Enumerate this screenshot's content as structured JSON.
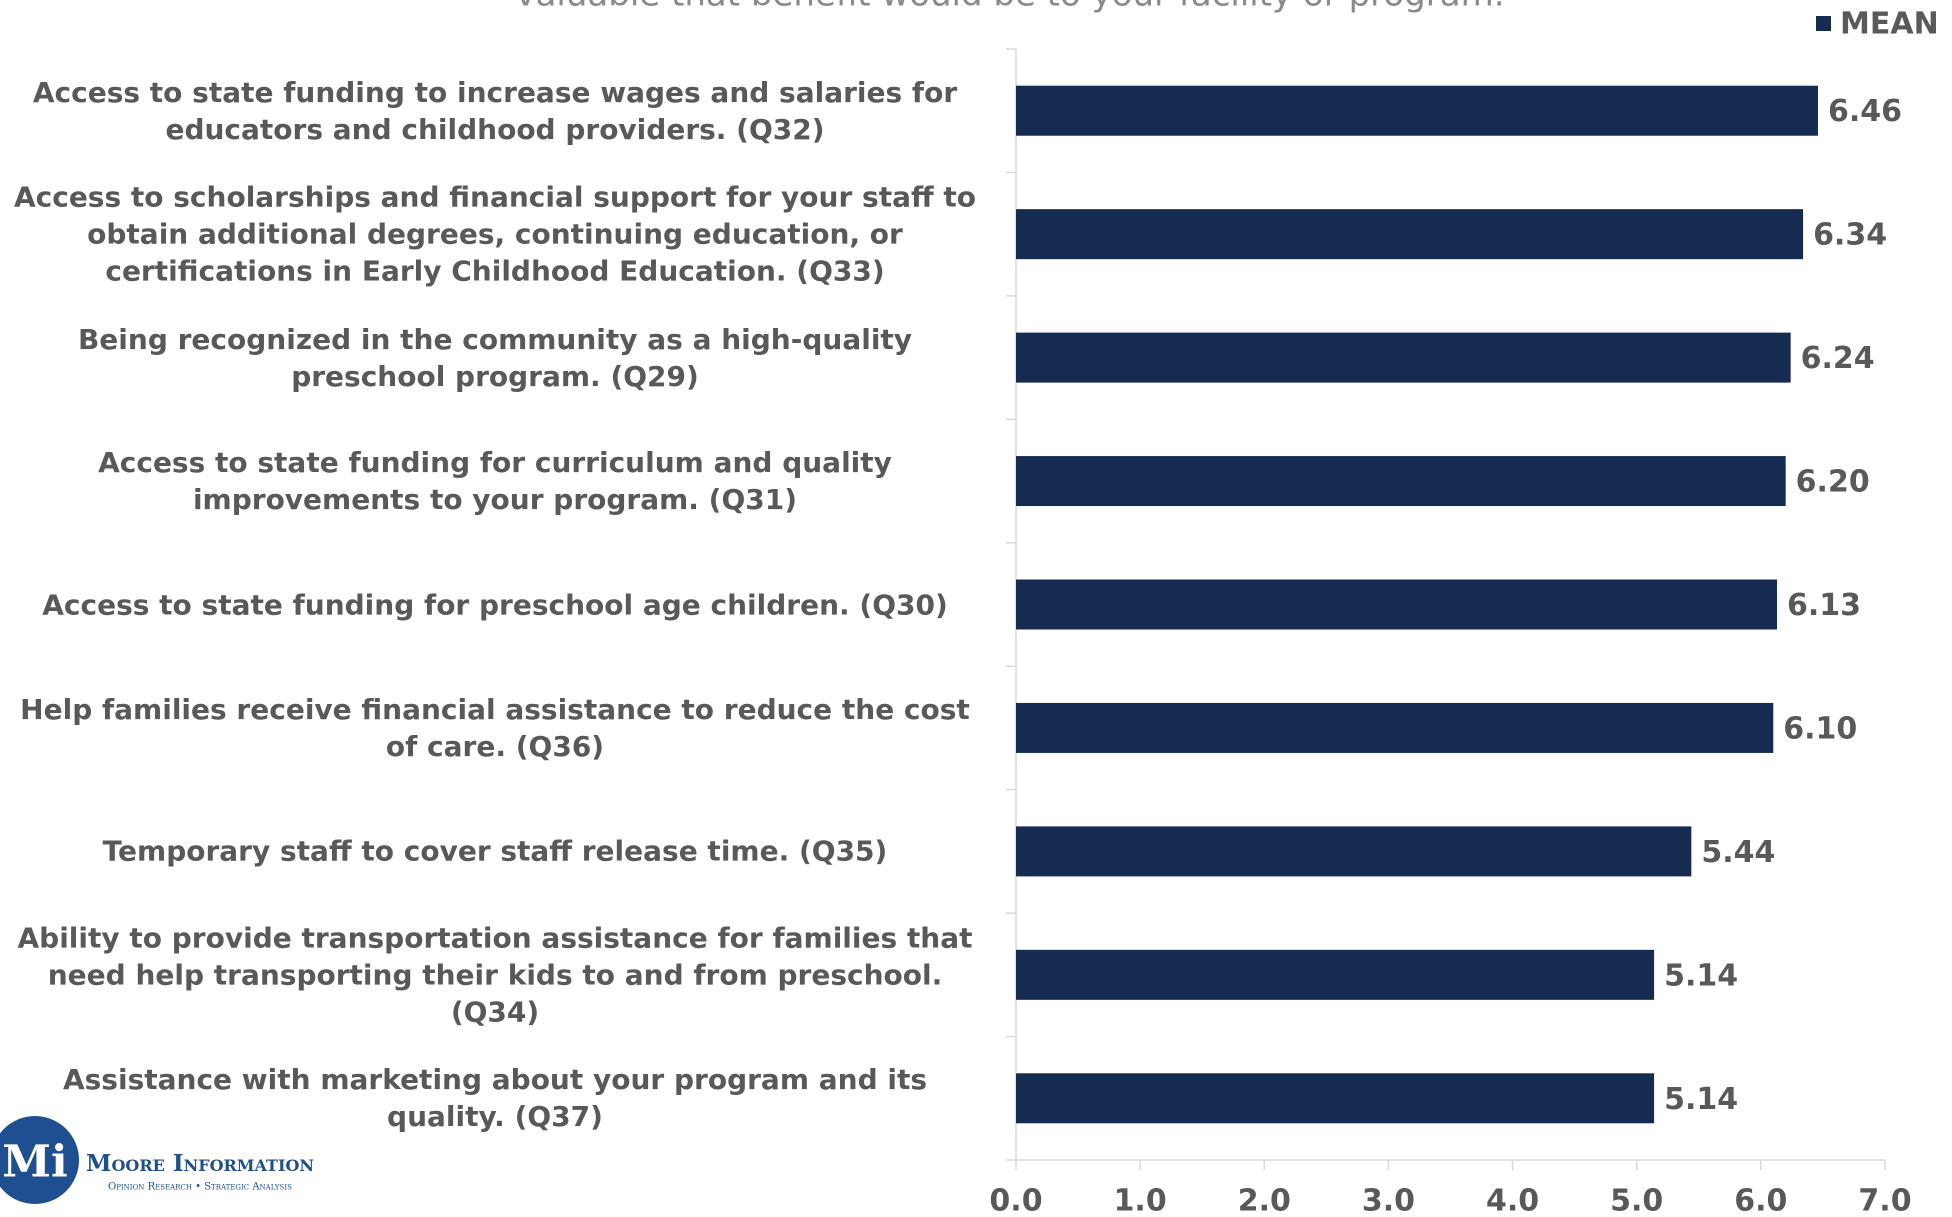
{
  "chart_data": {
    "type": "bar",
    "orientation": "horizontal",
    "title": "valuable that benefit would be to your facility or program.",
    "categories": [
      "Access to state funding to increase wages and salaries for educators and childhood providers. (Q32)",
      "Access to scholarships and financial support for your staff to obtain additional degrees, continuing education, or certifications in Early Childhood Education. (Q33)",
      "Being recognized in the community as a high-quality preschool program. (Q29)",
      "Access to state funding for curriculum and quality improvements to your program. (Q31)",
      "Access to state funding for preschool age children. (Q30)",
      "Help families receive financial assistance to reduce the cost of care. (Q36)",
      "Temporary staff to cover staff release time. (Q35)",
      "Ability to provide transportation assistance for families that need help transporting their kids to and from preschool. (Q34)",
      "Assistance with marketing about your program and its quality. (Q37)"
    ],
    "series": [
      {
        "name": "MEAN",
        "color": "#152b52",
        "values": [
          6.46,
          6.34,
          6.24,
          6.2,
          6.13,
          6.1,
          5.44,
          5.14,
          5.14
        ],
        "value_labels": [
          "6.46",
          "6.34",
          "6.24",
          "6.20",
          "6.13",
          "6.10",
          "5.44",
          "5.14",
          "5.14"
        ]
      }
    ],
    "xlim": [
      0,
      7
    ],
    "xticks": [
      {
        "value": 0,
        "label": "0.0"
      },
      {
        "value": 1,
        "label": "1.0"
      },
      {
        "value": 2,
        "label": "2.0"
      },
      {
        "value": 3,
        "label": "3.0"
      },
      {
        "value": 4,
        "label": "4.0"
      },
      {
        "value": 5,
        "label": "5.0"
      },
      {
        "value": 6,
        "label": "6.0"
      },
      {
        "value": 7,
        "label": "7.0"
      }
    ],
    "legend": "top-right",
    "grid": false
  },
  "logo": {
    "mark": "Mi",
    "name": "Moore Information",
    "tagline": "Opinion Research • Strategic Analysis"
  }
}
